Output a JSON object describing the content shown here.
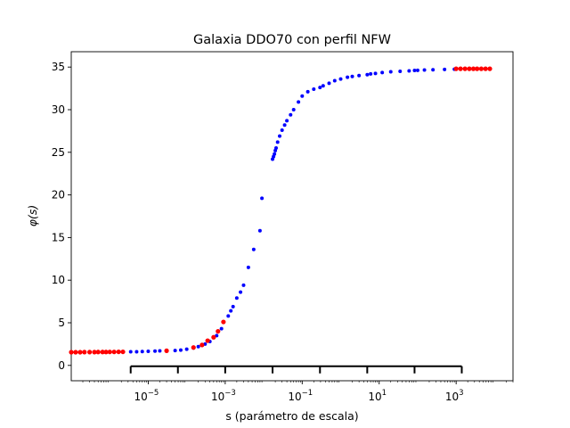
{
  "chart_data": {
    "type": "scatter",
    "title": "Galaxia DDO70 con perfil NFW",
    "xlabel": "s (parámetro de escala)",
    "ylabel": "φ(s)",
    "xscale": "log",
    "xlim": [
      1e-07,
      30000
    ],
    "ylim": [
      -1.8,
      36.8
    ],
    "yticks": [
      0,
      5,
      10,
      15,
      20,
      25,
      30,
      35
    ],
    "ytick_labels": [
      "0",
      "5",
      "10",
      "15",
      "20",
      "25",
      "30",
      "35"
    ],
    "xticks": [
      1e-05,
      0.001,
      0.1,
      10,
      1000
    ],
    "xtick_labels": [
      {
        "base": "10",
        "exp": "−5"
      },
      {
        "base": "10",
        "exp": "−3"
      },
      {
        "base": "10",
        "exp": "−1"
      },
      {
        "base": "10",
        "exp": "1"
      },
      {
        "base": "10",
        "exp": "3"
      }
    ],
    "bracket_ticks": [
      3.5e-06,
      5.9e-05,
      0.001,
      0.017,
      0.29,
      4.9,
      83,
      1400
    ],
    "bracket_y": -0.1,
    "series": [
      {
        "color": "#0000ff",
        "radius": 2,
        "x": [
          3.5e-06,
          5e-06,
          7e-06,
          1e-05,
          1.5e-05,
          2e-05,
          3e-05,
          5e-05,
          7e-05,
          0.0001,
          0.00015,
          0.0002,
          0.0003,
          0.0004,
          0.0006,
          0.0008,
          0.0012,
          0.0014,
          0.0016,
          0.002,
          0.0025,
          0.003,
          0.004,
          0.0055,
          0.008,
          0.009,
          0.017,
          0.018,
          0.019,
          0.02,
          0.021,
          0.023,
          0.026,
          0.03,
          0.035,
          0.04,
          0.05,
          0.06,
          0.08,
          0.1,
          0.14,
          0.2,
          0.29,
          0.35,
          0.5,
          0.7,
          1,
          1.5,
          2,
          3,
          4.9,
          6,
          8,
          12,
          20,
          35,
          60,
          83,
          100,
          150,
          250,
          500,
          900
        ],
        "y": [
          1.6,
          1.6,
          1.62,
          1.65,
          1.68,
          1.7,
          1.72,
          1.75,
          1.8,
          1.9,
          2.05,
          2.2,
          2.5,
          2.8,
          3.5,
          4.3,
          5.8,
          6.4,
          6.9,
          7.9,
          8.6,
          9.4,
          11.5,
          13.6,
          15.8,
          19.6,
          24.2,
          24.5,
          24.8,
          25.2,
          25.5,
          26.2,
          26.9,
          27.6,
          28.2,
          28.7,
          29.4,
          30,
          30.9,
          31.6,
          32.1,
          32.4,
          32.6,
          32.8,
          33.1,
          33.4,
          33.6,
          33.8,
          33.9,
          34.0,
          34.1,
          34.2,
          34.25,
          34.35,
          34.45,
          34.5,
          34.55,
          34.6,
          34.62,
          34.65,
          34.68,
          34.72,
          34.75
        ]
      },
      {
        "color": "#ff0000",
        "radius": 2.6,
        "x": [
          1e-07,
          1.3e-07,
          1.7e-07,
          2.2e-07,
          3e-07,
          4e-07,
          5e-07,
          6.5e-07,
          8e-07,
          1e-06,
          1.3e-06,
          1.7e-06,
          2.2e-06,
          3e-05,
          0.00015,
          0.00025,
          0.00035,
          0.0005,
          0.00065,
          0.0009,
          1000,
          1300,
          1700,
          2200,
          2800,
          3500,
          4500,
          5800,
          7500
        ],
        "y": [
          1.55,
          1.55,
          1.55,
          1.56,
          1.56,
          1.56,
          1.57,
          1.57,
          1.57,
          1.58,
          1.58,
          1.59,
          1.59,
          1.72,
          2.1,
          2.4,
          2.9,
          3.3,
          4.0,
          5.1,
          34.8,
          34.8,
          34.8,
          34.8,
          34.8,
          34.8,
          34.8,
          34.8,
          34.8
        ]
      }
    ]
  }
}
